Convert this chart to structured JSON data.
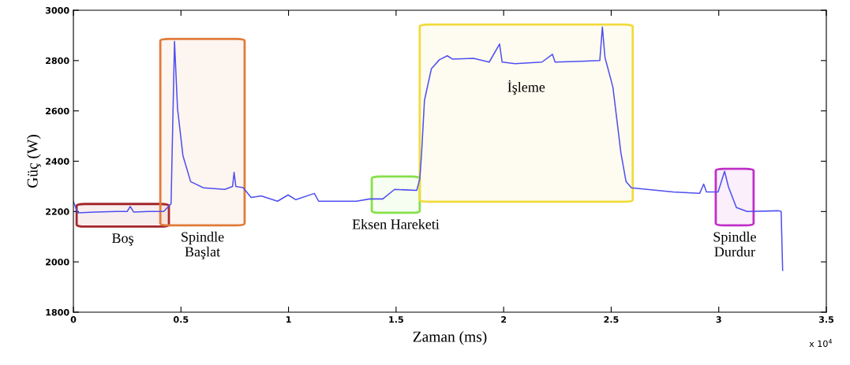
{
  "chart_data": {
    "type": "line",
    "xlabel": "Zaman (ms)",
    "ylabel": "Güç (W)",
    "xlim": [
      0,
      3.5
    ],
    "xticks": [
      0,
      0.5,
      1,
      1.5,
      2,
      2.5,
      3,
      3.5
    ],
    "ylim": [
      1800,
      3000
    ],
    "yticks": [
      1800,
      2000,
      2200,
      2400,
      2600,
      2800,
      3000
    ],
    "grid": false,
    "marker": "none",
    "line_style": "solid",
    "x": [
      0,
      0.02,
      0.1,
      0.2,
      0.25,
      0.264,
      0.28,
      0.35,
      0.42,
      0.454,
      0.47,
      0.484,
      0.509,
      0.545,
      0.605,
      0.704,
      0.74,
      0.747,
      0.755,
      0.766,
      0.789,
      0.826,
      0.873,
      0.949,
      0.998,
      1.034,
      1.12,
      1.14,
      1.316,
      1.377,
      1.438,
      1.493,
      1.596,
      1.61,
      1.618,
      1.632,
      1.664,
      1.701,
      1.738,
      1.762,
      1.86,
      1.933,
      1.981,
      1.993,
      2.054,
      2.178,
      2.227,
      2.239,
      2.361,
      2.447,
      2.459,
      2.471,
      2.508,
      2.545,
      2.569,
      2.594,
      2.667,
      2.788,
      2.911,
      2.93,
      2.943,
      2.997,
      3.027,
      3.045,
      3.082,
      3.132,
      3.278,
      3.29,
      3.297
    ],
    "series": [
      {
        "color": "#4f4ff0",
        "values": [
          2240,
          2195,
          2198,
          2200,
          2200,
          2220,
          2198,
          2200,
          2200,
          2231,
          2876,
          2610,
          2423,
          2319,
          2294,
          2288,
          2300,
          2356,
          2300,
          2298,
          2295,
          2256,
          2262,
          2241,
          2266,
          2247,
          2272,
          2241,
          2241,
          2250,
          2250,
          2288,
          2284,
          2329,
          2423,
          2642,
          2767,
          2803,
          2819,
          2806,
          2809,
          2794,
          2866,
          2794,
          2788,
          2794,
          2825,
          2794,
          2797,
          2800,
          2933,
          2813,
          2694,
          2434,
          2319,
          2294,
          2288,
          2278,
          2272,
          2309,
          2278,
          2278,
          2360,
          2298,
          2216,
          2200,
          2203,
          2200,
          1966
        ]
      }
    ],
    "bands": [
      {
        "axis": "x",
        "from": 0.015,
        "to": 0.444,
        "color": "#a3262c",
        "label": "Boş"
      },
      {
        "axis": "x",
        "from": 0.404,
        "to": 0.796,
        "color": "#e07b39",
        "label": "Spindle\nBaşlat"
      },
      {
        "axis": "x",
        "from": 1.387,
        "to": 1.61,
        "color": "#86e04a",
        "label": "Eksen Hareketi"
      },
      {
        "axis": "x",
        "from": 1.61,
        "to": 2.6,
        "color": "#f0dc3c",
        "label": "İşleme"
      },
      {
        "axis": "x",
        "from": 2.986,
        "to": 3.162,
        "color": "#c030c8",
        "label": "Spindle\nDurdur"
      }
    ],
    "annotations": [
      "x 10$^{4}$"
    ]
  }
}
